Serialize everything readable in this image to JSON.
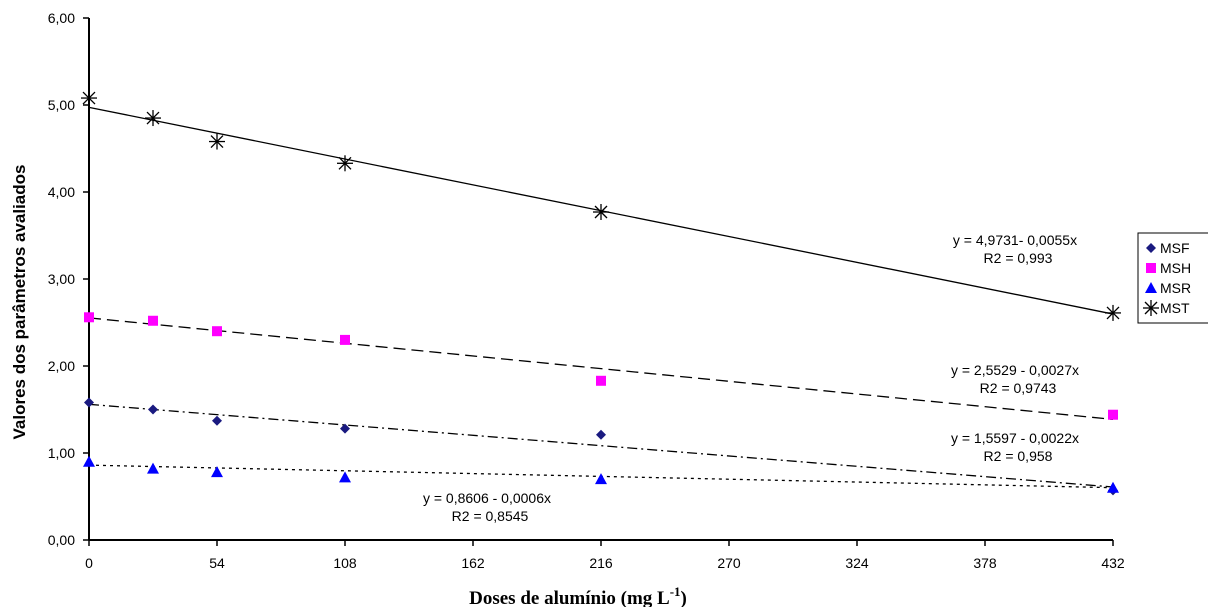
{
  "chart_data": {
    "type": "scatter",
    "xlabel": "Doses de alumínio (mg L-1)",
    "xlabel_main": "Doses de alumínio (mg L",
    "xlabel_sup": "-1",
    "xlabel_close": ")",
    "ylabel": "Valores dos parâmetros avaliados",
    "xlim": [
      0,
      432
    ],
    "ylim": [
      0,
      6
    ],
    "x_ticks": [
      "0",
      "54",
      "108",
      "162",
      "216",
      "270",
      "324",
      "378",
      "432"
    ],
    "y_ticks": [
      "0,00",
      "1,00",
      "2,00",
      "3,00",
      "4,00",
      "5,00",
      "6,00"
    ],
    "legend_position": "right",
    "x": [
      0,
      27,
      54,
      108,
      216,
      432
    ],
    "series": [
      {
        "name": "MSF",
        "marker": "diamond",
        "color": "#1a1a80",
        "line_style": "dashdot",
        "values": [
          1.58,
          1.5,
          1.37,
          1.28,
          1.21,
          0.57
        ],
        "trend": {
          "intercept": 1.5597,
          "slope": -0.0022
        },
        "equation": "y = 1,5597 - 0,0022x",
        "r2": "R2 = 0,958"
      },
      {
        "name": "MSH",
        "marker": "square",
        "color": "#ff00ff",
        "line_style": "dashed",
        "values": [
          2.56,
          2.52,
          2.4,
          2.3,
          1.83,
          1.44
        ],
        "trend": {
          "intercept": 2.5529,
          "slope": -0.0027
        },
        "equation": "y = 2,5529 - 0,0027x",
        "r2": "R2 = 0,9743"
      },
      {
        "name": "MSR",
        "marker": "triangle",
        "color": "#0000ff",
        "line_style": "dotted",
        "values": [
          0.9,
          0.82,
          0.78,
          0.72,
          0.7,
          0.6
        ],
        "trend": {
          "intercept": 0.8606,
          "slope": -0.0006
        },
        "equation": "y = 0,8606 - 0,0006x",
        "r2": "R2 = 0,8545"
      },
      {
        "name": "MST",
        "marker": "asterisk",
        "color": "#000000",
        "line_style": "solid",
        "values": [
          5.08,
          4.85,
          4.58,
          4.33,
          3.77,
          2.61
        ],
        "trend": {
          "intercept": 4.9731,
          "slope": -0.0055
        },
        "equation": "y = 4,9731- 0,0055x",
        "r2": "R2 = 0,993"
      }
    ]
  }
}
